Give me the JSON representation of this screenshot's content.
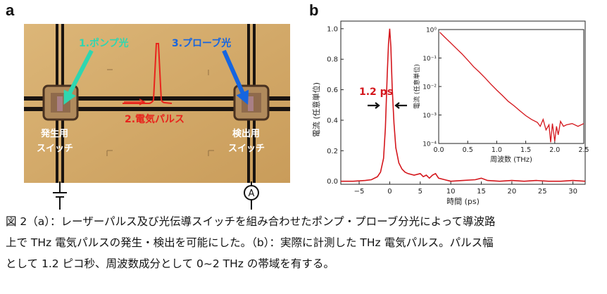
{
  "panel_a": {
    "label": "a",
    "pump_light": "1.ポンプ光",
    "probe_light": "3.プローブ光",
    "electric_pulse": "2.電気パルス",
    "generation_switch": [
      "発生用",
      "スイッチ"
    ],
    "detection_switch": [
      "検出用",
      "スイッチ"
    ],
    "ammeter_symbol": "A",
    "colors": {
      "pump_arrow": "#2fd6b0",
      "probe_arrow": "#1565e0",
      "pulse": "#e8231c",
      "substrate": "#d6ad6c"
    }
  },
  "panel_b": {
    "label": "b",
    "annotation": "1.2 ps"
  },
  "chart_data": [
    {
      "type": "line",
      "xlabel": "時間 (ps)",
      "ylabel": "電流 (任意単位)",
      "xlim": [
        -8,
        32
      ],
      "ylim": [
        -0.02,
        1.05
      ],
      "xticks": [
        -5,
        0,
        5,
        10,
        15,
        20,
        25,
        30
      ],
      "xtick_labels": [
        "−5",
        "0",
        "5",
        "10",
        "15",
        "20",
        "25",
        "30"
      ],
      "yticks": [
        0.0,
        0.2,
        0.4,
        0.6,
        0.8,
        1.0
      ],
      "ytick_labels": [
        "0.0",
        "0.2",
        "0.4",
        "0.6",
        "0.8",
        "1.0"
      ],
      "grid": false,
      "series": [
        {
          "color": "#d4161c",
          "x": [
            -8,
            -6,
            -4,
            -3,
            -2,
            -1.5,
            -1,
            -0.7,
            -0.4,
            -0.2,
            0,
            0.2,
            0.4,
            0.7,
            1,
            1.5,
            2,
            2.5,
            3,
            4,
            5,
            5.5,
            6,
            6.5,
            7,
            7.5,
            8,
            9,
            10,
            12,
            14,
            15,
            16,
            18,
            20,
            22,
            24,
            26,
            28,
            30,
            32
          ],
          "y": [
            0.0,
            0.0,
            0.005,
            0.01,
            0.03,
            0.06,
            0.15,
            0.35,
            0.7,
            0.9,
            1.0,
            0.88,
            0.62,
            0.38,
            0.22,
            0.12,
            0.08,
            0.06,
            0.05,
            0.04,
            0.05,
            0.03,
            0.04,
            0.02,
            0.04,
            0.05,
            0.02,
            0.01,
            0.0,
            0.005,
            0.01,
            0.02,
            0.005,
            0.0,
            0.005,
            0.0,
            0.005,
            0.0,
            0.0,
            0.005,
            0.0
          ]
        }
      ]
    },
    {
      "type": "line",
      "xlabel": "周波数 (THz)",
      "ylabel": "電流 (任意単位)",
      "xlim": [
        0,
        2.5
      ],
      "yscale": "log",
      "ylim": [
        0.0001,
        1
      ],
      "xticks": [
        0.0,
        0.5,
        1.0,
        1.5,
        2.0,
        2.5
      ],
      "xtick_labels": [
        "0.0",
        "0.5",
        "1.0",
        "1.5",
        "2.0",
        "2.5"
      ],
      "yticks": [
        0.0001,
        0.001,
        0.01,
        0.1,
        1
      ],
      "ytick_labels": [
        "10⁻⁴",
        "10⁻³",
        "10⁻²",
        "10⁻¹",
        "10⁰"
      ],
      "series": [
        {
          "color": "#d4161c",
          "x": [
            0.02,
            0.1,
            0.2,
            0.3,
            0.4,
            0.5,
            0.6,
            0.7,
            0.8,
            0.9,
            1.0,
            1.1,
            1.2,
            1.3,
            1.4,
            1.5,
            1.6,
            1.7,
            1.75,
            1.8,
            1.85,
            1.9,
            1.93,
            1.96,
            2.0,
            2.03,
            2.06,
            2.1,
            2.15,
            2.2,
            2.3,
            2.4,
            2.5
          ],
          "y": [
            0.8,
            0.55,
            0.35,
            0.22,
            0.14,
            0.085,
            0.05,
            0.032,
            0.02,
            0.012,
            0.0075,
            0.0048,
            0.003,
            0.0021,
            0.0014,
            0.00095,
            0.0007,
            0.00055,
            0.0004,
            0.0007,
            0.0003,
            0.00045,
            0.00011,
            0.0005,
            0.00012,
            0.0004,
            0.0002,
            0.0006,
            0.0004,
            0.00045,
            0.0005,
            0.0004,
            0.0005
          ]
        }
      ]
    }
  ],
  "caption": {
    "lines": [
      "図 2（a）：レーザーパルス及び光伝導スイッチを組み合わせたポンプ・プローブ分光によって導波路",
      "上で THz 電気パルスの発生・検出を可能にした。（b）：実際に計測した THz 電気パルス。パルス幅",
      "として 1.2 ピコ秒、周波数成分として 0~2 THz の帯域を有する。"
    ]
  }
}
